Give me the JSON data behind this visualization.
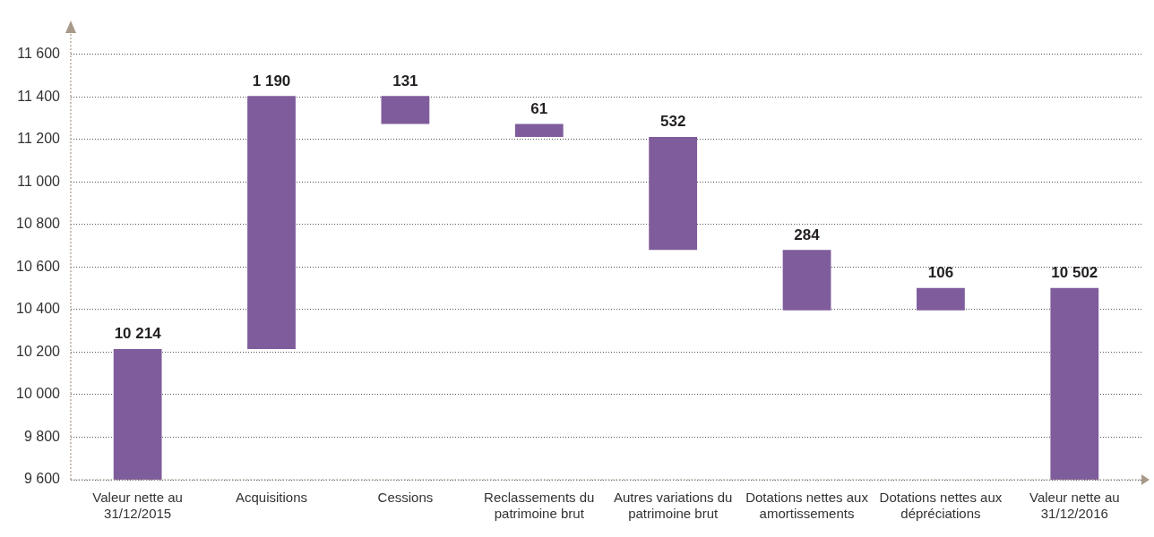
{
  "chart_data": {
    "type": "bar",
    "categories": [
      "Valeur nette au 31/12/2015",
      "Acquisitions",
      "Cessions",
      "Reclassements du patrimoine brut",
      "Autres variations du patrimoine brut",
      "Dotations nettes aux amortissements",
      "Dotations nettes aux dépréciations",
      "Valeur nette au 31/12/2016"
    ],
    "values": [
      10214,
      1190,
      -131,
      -61,
      -532,
      -284,
      106,
      10502
    ],
    "base": [
      null,
      10214,
      11404,
      11273,
      11212,
      10680,
      10396,
      null
    ],
    "value_labels": [
      "10 214",
      "1 190",
      "131",
      "61",
      "532",
      "284",
      "106",
      "10 502"
    ],
    "color": "#7f5c9b",
    "ylim": [
      9600,
      11700
    ],
    "yticks": [
      {
        "value": 9600,
        "label": "9 600"
      },
      {
        "value": 9800,
        "label": "9 800"
      },
      {
        "value": 10000,
        "label": "10 000"
      },
      {
        "value": 10200,
        "label": "10 200"
      },
      {
        "value": 10400,
        "label": "10 400"
      },
      {
        "value": 10600,
        "label": "10 600"
      },
      {
        "value": 10800,
        "label": "10 800"
      },
      {
        "value": 11000,
        "label": "11 000"
      },
      {
        "value": 11200,
        "label": "11 200"
      },
      {
        "value": 11400,
        "label": "11 400"
      },
      {
        "value": 11600,
        "label": "11 600"
      }
    ],
    "grid": "y"
  }
}
